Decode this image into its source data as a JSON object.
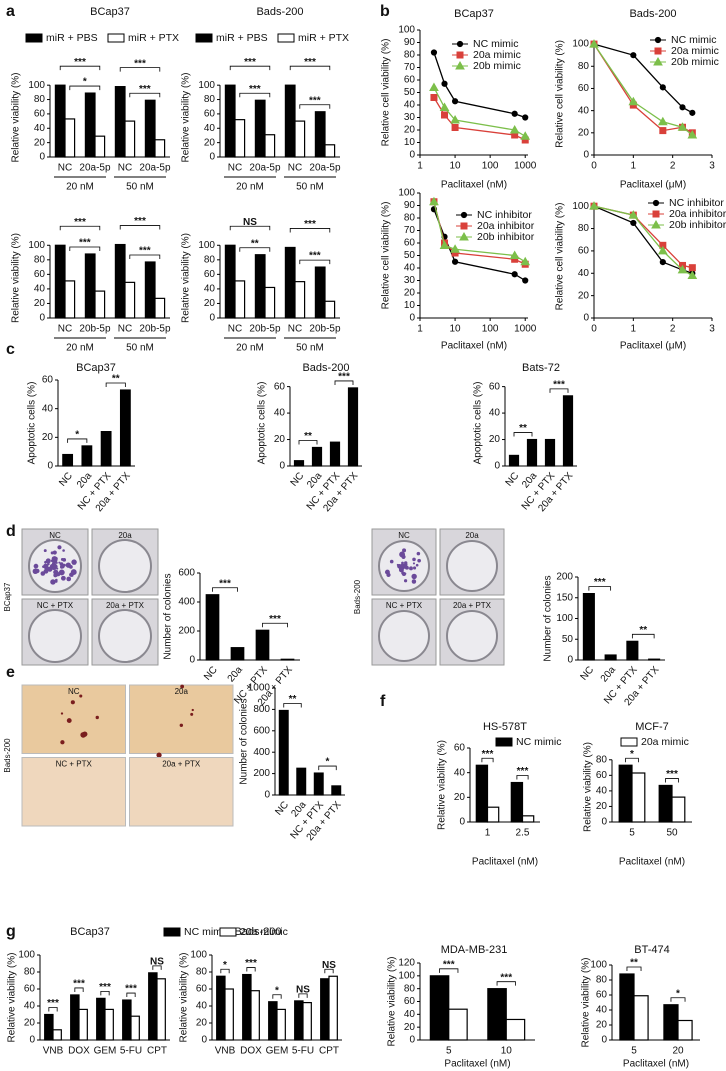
{
  "panel_labels": [
    "a",
    "b",
    "c",
    "d",
    "e",
    "f",
    "g"
  ],
  "images": [
    {
      "label": "BCap37",
      "wells": [
        "NC",
        "20a",
        "NC + PTX",
        "20a + PTX"
      ]
    },
    {
      "label": "Bads-200",
      "wells": [
        "NC",
        "20a",
        "NC + PTX",
        "20a + PTX"
      ]
    },
    {
      "label": "Bads-200",
      "wells": [
        "NC",
        "20a",
        "NC + PTX",
        "20a + PTX"
      ]
    }
  ],
  "chart_data": [
    {
      "type": "bar",
      "title": "BCap37",
      "y_label": "Relative viability (%)",
      "categories": [
        "NC",
        "20a-5p",
        "NC",
        "20a-5p"
      ],
      "groups": [
        "20 nM",
        "50 nM"
      ],
      "series": [
        {
          "name": "miR + PBS",
          "color": "#000000",
          "values": [
            100,
            89,
            98,
            79
          ]
        },
        {
          "name": "miR + PTX",
          "color": "#ffffff",
          "values": [
            53,
            29,
            50,
            24
          ]
        }
      ],
      "ylim": [
        0,
        110
      ],
      "yticks": [
        0,
        20,
        40,
        60,
        80,
        100
      ],
      "annotations": [
        "***",
        "*",
        "***",
        "***"
      ]
    },
    {
      "type": "bar",
      "title": "Bads-200",
      "y_label": "Relative viability (%)",
      "categories": [
        "NC",
        "20a-5p",
        "NC",
        "20a-5p"
      ],
      "groups": [
        "20 nM",
        "50 nM"
      ],
      "series": [
        {
          "name": "miR + PBS",
          "color": "#000000",
          "values": [
            100,
            79,
            100,
            63
          ]
        },
        {
          "name": "miR + PTX",
          "color": "#ffffff",
          "values": [
            52,
            31,
            50,
            17
          ]
        }
      ],
      "ylim": [
        0,
        110
      ],
      "yticks": [
        0,
        20,
        40,
        60,
        80,
        100
      ],
      "annotations": [
        "***",
        "***",
        "***",
        "***"
      ]
    },
    {
      "type": "bar",
      "y_label": "Relative viability (%)",
      "categories": [
        "NC",
        "20b-5p",
        "NC",
        "20b-5p"
      ],
      "groups": [
        "20 nM",
        "50 nM"
      ],
      "series": [
        {
          "color": "#000000",
          "values": [
            100,
            88,
            101,
            77
          ]
        },
        {
          "color": "#ffffff",
          "values": [
            51,
            37,
            49,
            27
          ]
        }
      ],
      "ylim": [
        0,
        110
      ],
      "yticks": [
        0,
        20,
        40,
        60,
        80,
        100
      ],
      "annotations": [
        "***",
        "***",
        "***",
        "***"
      ]
    },
    {
      "type": "bar",
      "y_label": "Relative viability (%)",
      "categories": [
        "NC",
        "20b-5p",
        "NC",
        "20b-5p"
      ],
      "groups": [
        "20 nM",
        "50 nM"
      ],
      "series": [
        {
          "color": "#000000",
          "values": [
            100,
            87,
            97,
            70
          ]
        },
        {
          "color": "#ffffff",
          "values": [
            51,
            42,
            50,
            23
          ]
        }
      ],
      "ylim": [
        0,
        110
      ],
      "yticks": [
        0,
        20,
        40,
        60,
        80,
        100
      ],
      "annotations": [
        "NS",
        "**",
        "***",
        "***"
      ]
    },
    {
      "type": "line",
      "title": "BCap37",
      "y_label": "Relative cell viability (%)",
      "x_label": "Paclitaxel (nM)",
      "xlog": true,
      "x": [
        2.5,
        5,
        10,
        500,
        1000
      ],
      "xlim": [
        1,
        1200
      ],
      "xticks": [
        1,
        10,
        100,
        1000
      ],
      "ylim": [
        0,
        100
      ],
      "yticks": [
        0,
        10,
        20,
        30,
        40,
        50,
        60,
        70,
        80,
        90,
        100
      ],
      "series": [
        {
          "name": "NC mimic",
          "color": "#000000",
          "marker": "circle",
          "values": [
            82,
            57,
            43,
            33,
            30
          ]
        },
        {
          "name": "20a mimic",
          "color": "#d9403a",
          "marker": "square",
          "values": [
            46,
            32,
            22,
            16,
            12
          ]
        },
        {
          "name": "20b mimic",
          "color": "#7cbf4a",
          "marker": "triangle",
          "values": [
            54,
            38,
            28,
            20,
            15
          ]
        }
      ]
    },
    {
      "type": "line",
      "title": "Bads-200",
      "y_label": "Relative cell viability (%)",
      "x_label": "Paclitaxel (μM)",
      "xlog": false,
      "x": [
        0,
        1,
        1.75,
        2.25,
        2.5
      ],
      "xlim": [
        0,
        3
      ],
      "xticks": [
        0,
        1,
        2,
        3
      ],
      "ylim": [
        0,
        110
      ],
      "yticks": [
        0,
        20,
        40,
        60,
        80,
        100
      ],
      "series": [
        {
          "name": "NC mimic",
          "color": "#000000",
          "marker": "circle",
          "values": [
            100,
            90,
            61,
            43,
            38
          ]
        },
        {
          "name": "20a mimic",
          "color": "#d9403a",
          "marker": "square",
          "values": [
            100,
            45,
            22,
            25,
            20
          ]
        },
        {
          "name": "20b mimic",
          "color": "#7cbf4a",
          "marker": "triangle",
          "values": [
            100,
            48,
            30,
            25,
            18
          ]
        }
      ]
    },
    {
      "type": "line",
      "y_label": "Relative cell viability (%)",
      "x_label": "Paclitaxel (nM)",
      "xlog": true,
      "x": [
        2.5,
        5,
        10,
        500,
        1000
      ],
      "xlim": [
        1,
        1200
      ],
      "xticks": [
        1,
        10,
        100,
        1000
      ],
      "ylim": [
        0,
        100
      ],
      "yticks": [
        0,
        10,
        20,
        30,
        40,
        50,
        60,
        70,
        80,
        90,
        100
      ],
      "series": [
        {
          "name": "NC inhibitor",
          "color": "#000000",
          "marker": "circle",
          "values": [
            87,
            65,
            45,
            35,
            30
          ]
        },
        {
          "name": "20a inhibitor",
          "color": "#d9403a",
          "marker": "square",
          "values": [
            93,
            60,
            52,
            47,
            43
          ]
        },
        {
          "name": "20b inhibitor",
          "color": "#7cbf4a",
          "marker": "triangle",
          "values": [
            93,
            58,
            55,
            50,
            45
          ]
        }
      ]
    },
    {
      "type": "line",
      "y_label": "Relative cell viability (%)",
      "x_label": "Paclitaxel (μM)",
      "xlog": false,
      "x": [
        0,
        1,
        1.75,
        2.25,
        2.5
      ],
      "xlim": [
        0,
        3
      ],
      "xticks": [
        0,
        1,
        2,
        3
      ],
      "ylim": [
        0,
        110
      ],
      "yticks": [
        0,
        20,
        40,
        60,
        80,
        100
      ],
      "series": [
        {
          "name": "NC inhibitor",
          "color": "#000000",
          "marker": "circle",
          "values": [
            100,
            85,
            50,
            43,
            40
          ]
        },
        {
          "name": "20a inhibitor",
          "color": "#d9403a",
          "marker": "square",
          "values": [
            100,
            92,
            65,
            47,
            45
          ]
        },
        {
          "name": "20b inhibitor",
          "color": "#7cbf4a",
          "marker": "triangle",
          "values": [
            100,
            92,
            60,
            43,
            38
          ]
        }
      ]
    },
    {
      "type": "bar",
      "title": "BCap37",
      "y_label": "Apoptotic cells (%)",
      "categories": [
        "NC",
        "20a",
        "NC + PTX",
        "20a + PTX"
      ],
      "values": [
        8,
        14,
        24,
        53
      ],
      "color": "#000000",
      "ylim": [
        0,
        60
      ],
      "yticks": [
        0,
        20,
        40,
        60
      ],
      "annotations": [
        "*",
        "**"
      ]
    },
    {
      "type": "bar",
      "title": "Bads-200",
      "y_label": "Apoptotic cells (%)",
      "categories": [
        "NC",
        "20a",
        "NC + PTX",
        "20a + PTX"
      ],
      "values": [
        4,
        14,
        18,
        59
      ],
      "color": "#000000",
      "ylim": [
        0,
        65
      ],
      "yticks": [
        0,
        20,
        40,
        60
      ],
      "annotations": [
        "**",
        "***"
      ]
    },
    {
      "type": "bar",
      "title": "Bats-72",
      "y_label": "Apoptotic cells (%)",
      "categories": [
        "NC",
        "20a",
        "NC + PTX",
        "20a + PTX"
      ],
      "values": [
        8,
        20,
        20,
        53
      ],
      "color": "#000000",
      "ylim": [
        0,
        65
      ],
      "yticks": [
        0,
        20,
        40,
        60
      ],
      "annotations": [
        "**",
        "***"
      ]
    },
    {
      "type": "bar",
      "y_label": "Number of colonies",
      "categories": [
        "NC",
        "20a",
        "NC + PTX",
        "20a + PTX"
      ],
      "values": [
        450,
        85,
        205,
        5
      ],
      "color": "#000000",
      "ylim": [
        0,
        600
      ],
      "yticks": [
        0,
        200,
        400,
        600
      ],
      "annotations": [
        "***",
        "***"
      ]
    },
    {
      "type": "bar",
      "y_label": "Number of colonies",
      "categories": [
        "NC",
        "20a",
        "NC + PTX",
        "20a + PTX"
      ],
      "values": [
        160,
        12,
        45,
        2
      ],
      "color": "#000000",
      "ylim": [
        0,
        200
      ],
      "yticks": [
        0,
        50,
        100,
        150,
        200
      ],
      "annotations": [
        "***",
        "**"
      ]
    },
    {
      "type": "bar",
      "y_label": "Number of colonies",
      "categories": [
        "NC",
        "20a",
        "NC + PTX",
        "20a + PTX"
      ],
      "values": [
        790,
        250,
        205,
        85
      ],
      "color": "#000000",
      "ylim": [
        0,
        1000
      ],
      "yticks": [
        0,
        200,
        400,
        600,
        800,
        1000
      ],
      "annotations": [
        "**",
        "*"
      ]
    },
    {
      "type": "bar",
      "title": "HS-578T",
      "y_label": "Relative viability (%)",
      "x_label": "Paclitaxel (nM)",
      "categories": [
        "1",
        "2.5"
      ],
      "series": [
        {
          "name": "NC mimic",
          "color": "#000000",
          "values": [
            46,
            32
          ]
        },
        {
          "name": "20a mimic",
          "color": "#ffffff",
          "values": [
            12,
            5
          ]
        }
      ],
      "ylim": [
        0,
        60
      ],
      "yticks": [
        0,
        20,
        40,
        60
      ],
      "annotations": [
        "***",
        "***"
      ]
    },
    {
      "type": "bar",
      "title": "MCF-7",
      "y_label": "Relative viability (%)",
      "x_label": "Paclitaxel (nM)",
      "categories": [
        "5",
        "50"
      ],
      "series": [
        {
          "color": "#000000",
          "values": [
            73,
            47
          ]
        },
        {
          "color": "#ffffff",
          "values": [
            63,
            32
          ]
        }
      ],
      "ylim": [
        0,
        90
      ],
      "yticks": [
        0,
        20,
        40,
        60,
        80
      ],
      "annotations": [
        "*",
        "***"
      ]
    },
    {
      "type": "bar",
      "title": "BCap37",
      "y_label": "Relative viability (%)",
      "categories": [
        "VNB",
        "DOX",
        "GEM",
        "5-FU",
        "CPT"
      ],
      "series": [
        {
          "name": "NC mimic",
          "color": "#000000",
          "values": [
            30,
            53,
            49,
            47,
            79
          ]
        },
        {
          "name": "20a mimic",
          "color": "#ffffff",
          "values": [
            12,
            36,
            36,
            28,
            72
          ]
        }
      ],
      "ylim": [
        0,
        100
      ],
      "yticks": [
        0,
        20,
        40,
        60,
        80,
        100
      ],
      "annotations": [
        "***",
        "***",
        "***",
        "***",
        "NS"
      ]
    },
    {
      "type": "bar",
      "title": "Bads-200",
      "y_label": "Relative viability (%)",
      "categories": [
        "VNB",
        "DOX",
        "GEM",
        "5-FU",
        "CPT"
      ],
      "series": [
        {
          "color": "#000000",
          "values": [
            75,
            77,
            45,
            46,
            72
          ]
        },
        {
          "color": "#ffffff",
          "values": [
            60,
            58,
            36,
            44,
            75
          ]
        }
      ],
      "ylim": [
        0,
        100
      ],
      "yticks": [
        0,
        20,
        40,
        60,
        80,
        100
      ],
      "annotations": [
        "*",
        "***",
        "*",
        "NS",
        "NS"
      ]
    },
    {
      "type": "bar",
      "title": "MDA-MB-231",
      "y_label": "Relative viability (%)",
      "x_label": "Paclitaxel (nM)",
      "categories": [
        "5",
        "10"
      ],
      "series": [
        {
          "color": "#000000",
          "values": [
            100,
            80
          ]
        },
        {
          "color": "#ffffff",
          "values": [
            48,
            32
          ]
        }
      ],
      "ylim": [
        0,
        120
      ],
      "yticks": [
        0,
        20,
        40,
        60,
        80,
        100,
        120
      ],
      "annotations": [
        "***",
        "***"
      ]
    },
    {
      "type": "bar",
      "title": "BT-474",
      "y_label": "Relative viability (%)",
      "x_label": "Paclitaxel (nM)",
      "categories": [
        "5",
        "20"
      ],
      "series": [
        {
          "color": "#000000",
          "values": [
            88,
            47
          ]
        },
        {
          "color": "#ffffff",
          "values": [
            59,
            26
          ]
        }
      ],
      "ylim": [
        0,
        100
      ],
      "yticks": [
        0,
        20,
        40,
        60,
        80,
        100
      ],
      "annotations": [
        "**",
        "*"
      ]
    }
  ]
}
